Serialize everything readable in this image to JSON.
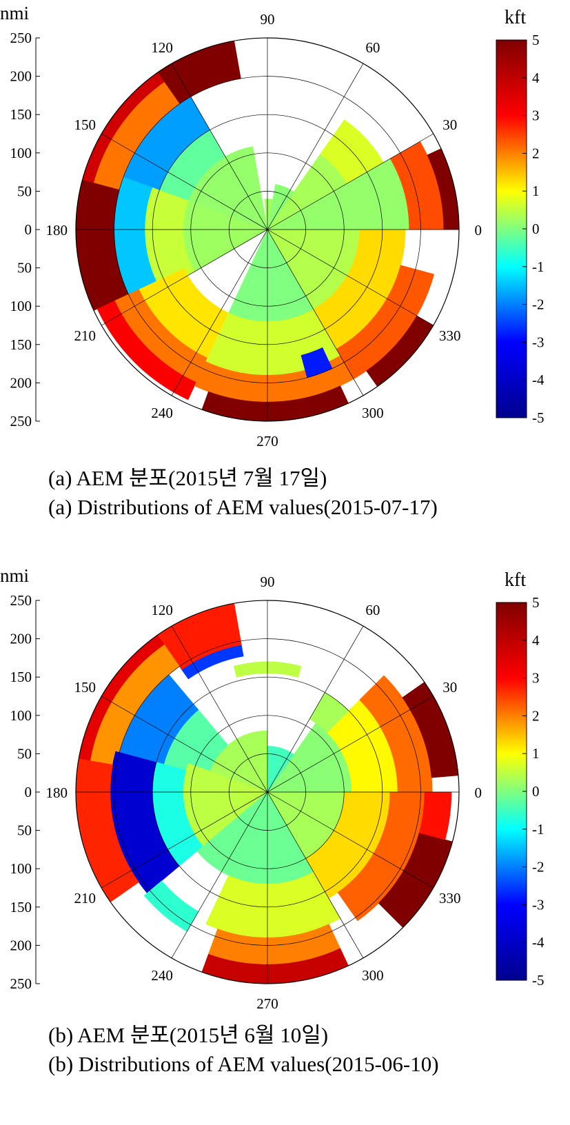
{
  "colors": {
    "colormap": "jet",
    "colormap_stops": [
      "#00008f",
      "#0000ff",
      "#00ffff",
      "#ffff00",
      "#ff0000",
      "#800000"
    ],
    "axis": "#000000",
    "grid": "#000000"
  },
  "chart_data": [
    {
      "type": "heatmap",
      "projection": "polar",
      "title": "",
      "radial_unit_label": "nmi",
      "radial_ticks": [
        "250",
        "200",
        "150",
        "100",
        "50",
        "0",
        "50",
        "100",
        "150",
        "200",
        "250"
      ],
      "radial_range": [
        0,
        250
      ],
      "radial_grid_rings": [
        50,
        100,
        150,
        200,
        250
      ],
      "angle_labels": [
        "90",
        "60",
        "30",
        "0",
        "330",
        "300",
        "270",
        "240",
        "210",
        "180",
        "150",
        "120"
      ],
      "angle_label_values": [
        90,
        60,
        30,
        0,
        330,
        300,
        270,
        240,
        210,
        180,
        150,
        120
      ],
      "colorbar": {
        "label": "kft",
        "range": [
          -5,
          5
        ],
        "ticks": [
          "5",
          "4",
          "3",
          "2",
          "1",
          "0",
          "-1",
          "-2",
          "-3",
          "-4",
          "-5"
        ]
      },
      "caption_kr": "(a)  AEM 분포(2015년 7월 17일)",
      "caption_en": "(a)  Distributions of AEM values(2015-07-17)",
      "sectors": [
        {
          "a0": 0,
          "a1": 30,
          "r0": 0,
          "r1": 185,
          "v": 0.2
        },
        {
          "a0": 0,
          "a1": 30,
          "r0": 185,
          "r1": 230,
          "v": 3.0
        },
        {
          "a0": 0,
          "a1": 25,
          "r0": 230,
          "r1": 250,
          "v": 5
        },
        {
          "a0": 30,
          "a1": 55,
          "r0": 0,
          "r1": 120,
          "v": 0.4
        },
        {
          "a0": 30,
          "a1": 55,
          "r0": 120,
          "r1": 175,
          "v": 0.9
        },
        {
          "a0": 55,
          "a1": 80,
          "r0": 0,
          "r1": 60,
          "v": 0.1
        },
        {
          "a0": 80,
          "a1": 95,
          "r0": 0,
          "r1": 40,
          "v": 0.3
        },
        {
          "a0": 100,
          "a1": 160,
          "r0": 0,
          "r1": 110,
          "v": 0.2
        },
        {
          "a0": 100,
          "a1": 125,
          "r0": 200,
          "r1": 250,
          "v": 5
        },
        {
          "a0": 120,
          "a1": 160,
          "r0": 110,
          "r1": 150,
          "v": -0.3
        },
        {
          "a0": 120,
          "a1": 160,
          "r0": 150,
          "r1": 200,
          "v": -2.2
        },
        {
          "a0": 125,
          "a1": 165,
          "r0": 200,
          "r1": 235,
          "v": 2.6
        },
        {
          "a0": 125,
          "a1": 165,
          "r0": 235,
          "r1": 250,
          "v": 4.2
        },
        {
          "a0": 160,
          "a1": 210,
          "r0": 0,
          "r1": 110,
          "v": 0.3
        },
        {
          "a0": 160,
          "a1": 210,
          "r0": 110,
          "r1": 160,
          "v": 0.7
        },
        {
          "a0": 160,
          "a1": 210,
          "r0": 160,
          "r1": 200,
          "v": -1.8
        },
        {
          "a0": 165,
          "a1": 205,
          "r0": 200,
          "r1": 250,
          "v": 5
        },
        {
          "a0": 205,
          "a1": 245,
          "r0": 120,
          "r1": 185,
          "v": 1.5
        },
        {
          "a0": 205,
          "a1": 245,
          "r0": 185,
          "r1": 220,
          "v": 2.6
        },
        {
          "a0": 205,
          "a1": 245,
          "r0": 220,
          "r1": 245,
          "v": 3.8
        },
        {
          "a0": 245,
          "a1": 300,
          "r0": 0,
          "r1": 120,
          "v": 0.0
        },
        {
          "a0": 245,
          "a1": 300,
          "r0": 120,
          "r1": 190,
          "v": 0.8
        },
        {
          "a0": 245,
          "a1": 300,
          "r0": 190,
          "r1": 225,
          "v": 2.6
        },
        {
          "a0": 250,
          "a1": 295,
          "r0": 225,
          "r1": 250,
          "v": 5
        },
        {
          "a0": 285,
          "a1": 295,
          "r0": 170,
          "r1": 200,
          "v": -3.5
        },
        {
          "a0": 300,
          "a1": 360,
          "r0": 0,
          "r1": 120,
          "v": 0.5
        },
        {
          "a0": 300,
          "a1": 360,
          "r0": 120,
          "r1": 180,
          "v": 1.6
        },
        {
          "a0": 300,
          "a1": 345,
          "r0": 180,
          "r1": 225,
          "v": 2.9
        },
        {
          "a0": 305,
          "a1": 330,
          "r0": 225,
          "r1": 250,
          "v": 5
        }
      ]
    },
    {
      "type": "heatmap",
      "projection": "polar",
      "title": "",
      "radial_unit_label": "nmi",
      "radial_ticks": [
        "250",
        "200",
        "150",
        "100",
        "50",
        "0",
        "50",
        "100",
        "150",
        "200",
        "250"
      ],
      "radial_range": [
        0,
        250
      ],
      "radial_grid_rings": [
        50,
        100,
        150,
        200,
        250
      ],
      "angle_labels": [
        "90",
        "60",
        "30",
        "0",
        "330",
        "300",
        "270",
        "240",
        "210",
        "180",
        "150",
        "120"
      ],
      "angle_label_values": [
        90,
        60,
        30,
        0,
        330,
        300,
        270,
        240,
        210,
        180,
        150,
        120
      ],
      "colorbar": {
        "label": "kft",
        "range": [
          -5,
          5
        ],
        "ticks": [
          "5",
          "4",
          "3",
          "2",
          "1",
          "0",
          "-1",
          "-2",
          "-3",
          "-4",
          "-5"
        ]
      },
      "caption_kr": "(b)  AEM 분포(2015년 6월 10일)",
      "caption_en": "(b)  Distributions of AEM values(2015-06-10)",
      "sectors": [
        {
          "a0": 0,
          "a1": 55,
          "r0": 0,
          "r1": 110,
          "v": 0.1
        },
        {
          "a0": 0,
          "a1": 45,
          "r0": 110,
          "r1": 170,
          "v": 1.3
        },
        {
          "a0": 0,
          "a1": 45,
          "r0": 170,
          "r1": 215,
          "v": 2.7
        },
        {
          "a0": 5,
          "a1": 35,
          "r0": 215,
          "r1": 250,
          "v": 5
        },
        {
          "a0": 45,
          "a1": 60,
          "r0": 110,
          "r1": 150,
          "v": 0.4
        },
        {
          "a0": 55,
          "a1": 90,
          "r0": 0,
          "r1": 60,
          "v": -0.6
        },
        {
          "a0": 75,
          "a1": 105,
          "r0": 155,
          "r1": 170,
          "v": 0.6
        },
        {
          "a0": 90,
          "a1": 160,
          "r0": 0,
          "r1": 80,
          "v": 0.4
        },
        {
          "a0": 100,
          "a1": 125,
          "r0": 180,
          "r1": 195,
          "v": -3.2
        },
        {
          "a0": 100,
          "a1": 125,
          "r0": 195,
          "r1": 250,
          "v": 3.5
        },
        {
          "a0": 130,
          "a1": 165,
          "r0": 80,
          "r1": 140,
          "v": -0.4
        },
        {
          "a0": 130,
          "a1": 165,
          "r0": 140,
          "r1": 200,
          "v": -2.5
        },
        {
          "a0": 125,
          "a1": 170,
          "r0": 200,
          "r1": 235,
          "v": 2.3
        },
        {
          "a0": 125,
          "a1": 170,
          "r0": 235,
          "r1": 250,
          "v": 4.0
        },
        {
          "a0": 160,
          "a1": 220,
          "r0": 0,
          "r1": 110,
          "v": 0.6
        },
        {
          "a0": 165,
          "a1": 220,
          "r0": 110,
          "r1": 150,
          "v": -1.0
        },
        {
          "a0": 165,
          "a1": 220,
          "r0": 150,
          "r1": 205,
          "v": -4.2
        },
        {
          "a0": 170,
          "a1": 215,
          "r0": 205,
          "r1": 250,
          "v": 3.4
        },
        {
          "a0": 220,
          "a1": 240,
          "r0": 180,
          "r1": 210,
          "v": -0.8
        },
        {
          "a0": 220,
          "a1": 320,
          "r0": 0,
          "r1": 120,
          "v": -0.2
        },
        {
          "a0": 245,
          "a1": 300,
          "r0": 120,
          "r1": 190,
          "v": 0.9
        },
        {
          "a0": 250,
          "a1": 295,
          "r0": 190,
          "r1": 225,
          "v": 2.5
        },
        {
          "a0": 250,
          "a1": 295,
          "r0": 225,
          "r1": 250,
          "v": 4.3
        },
        {
          "a0": 300,
          "a1": 360,
          "r0": 0,
          "r1": 100,
          "v": 0.4
        },
        {
          "a0": 300,
          "a1": 360,
          "r0": 100,
          "r1": 160,
          "v": 1.6
        },
        {
          "a0": 305,
          "a1": 360,
          "r0": 160,
          "r1": 205,
          "v": 2.8
        },
        {
          "a0": 315,
          "a1": 345,
          "r0": 205,
          "r1": 250,
          "v": 5
        },
        {
          "a0": 345,
          "a1": 360,
          "r0": 205,
          "r1": 240,
          "v": 3.6
        }
      ]
    }
  ]
}
